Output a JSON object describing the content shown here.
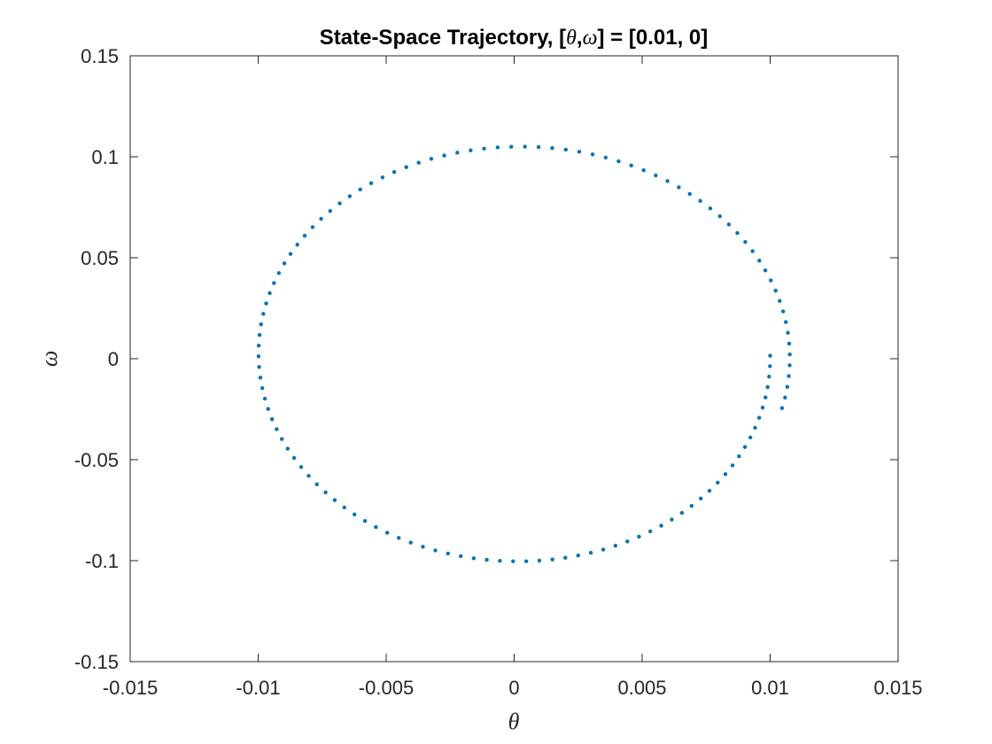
{
  "chart_data": {
    "type": "scatter",
    "title": {
      "prefix": "State-Space Trajectory, [",
      "var1": "θ",
      "comma": ",",
      "var2": "ω",
      "suffix": "] = [0.01, 0]"
    },
    "xlabel": "θ",
    "ylabel": "ω",
    "xlim": [
      -0.015,
      0.015
    ],
    "ylim": [
      -0.15,
      0.15
    ],
    "x_ticks": [
      -0.015,
      -0.01,
      -0.005,
      0,
      0.005,
      0.01,
      0.015
    ],
    "x_tick_labels": [
      "-0.015",
      "-0.01",
      "-0.005",
      "0",
      "0.005",
      "0.01",
      "0.015"
    ],
    "y_ticks": [
      -0.15,
      -0.1,
      -0.05,
      0,
      0.05,
      0.1,
      0.15
    ],
    "y_tick_labels": [
      "-0.15",
      "-0.1",
      "-0.05",
      "0",
      "0.05",
      "0.1",
      "0.15"
    ],
    "grid": false,
    "box": true,
    "series": [
      {
        "marker": "dot",
        "color": "#0072BD",
        "trajectory": {
          "start": [
            0.01,
            0
          ],
          "end": [
            0.0108,
            0.009
          ],
          "center": [
            0.0002,
            0.0015
          ],
          "theta_amplitude_start": 0.0098,
          "theta_amplitude_end": 0.0106,
          "omega_amplitude_start": 0.101,
          "omega_amplitude_end": 0.1045,
          "sample_count": 128
        }
      }
    ]
  },
  "colors": {
    "data": "#0072BD",
    "axes": "#262626",
    "background": "#ffffff"
  }
}
